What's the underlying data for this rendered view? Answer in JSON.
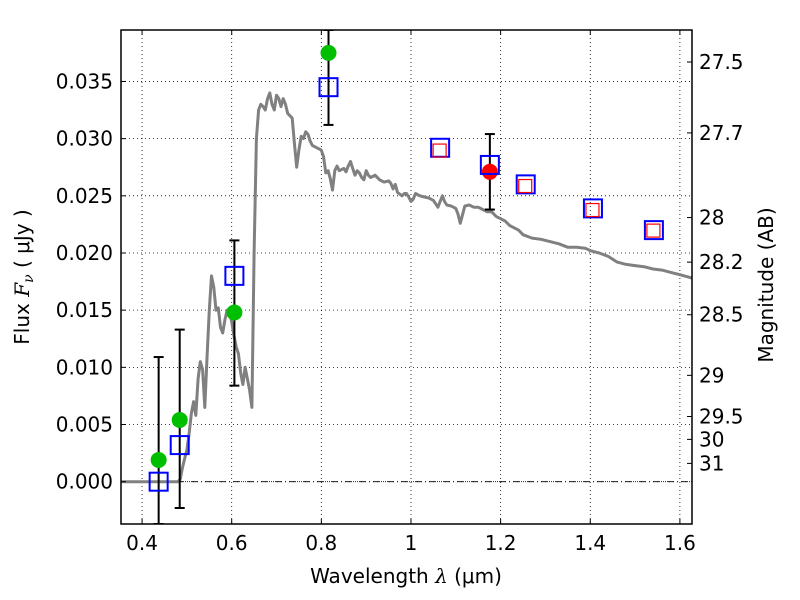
{
  "chart_data": {
    "type": "scatter",
    "title": "",
    "xlabel": "Wavelength  λ (μm)",
    "xlabel_parts": {
      "text": "Wavelength  ",
      "symbol": "λ",
      "unit": " (μm)"
    },
    "ylabel": "Flux  Fν  ( μJy )",
    "ylabel_parts": {
      "text": "Flux  ",
      "symbol": "F",
      "sub": "ν",
      "unit": "  ( μJy )"
    },
    "y2label": "Magnitude (AB)",
    "xlim": [
      0.353,
      1.627
    ],
    "ylim": [
      -0.0037,
      0.0395
    ],
    "grid": true,
    "x_ticks": [
      {
        "value": 0.4,
        "label": "0.4"
      },
      {
        "value": 0.6,
        "label": "0.6"
      },
      {
        "value": 0.8,
        "label": "0.8"
      },
      {
        "value": 1.0,
        "label": "1"
      },
      {
        "value": 1.2,
        "label": "1.2"
      },
      {
        "value": 1.4,
        "label": "1.4"
      },
      {
        "value": 1.6,
        "label": "1.6"
      }
    ],
    "y_ticks": [
      {
        "value": 0.0,
        "label": "0.000"
      },
      {
        "value": 0.005,
        "label": "0.005"
      },
      {
        "value": 0.01,
        "label": "0.010"
      },
      {
        "value": 0.015,
        "label": "0.015"
      },
      {
        "value": 0.02,
        "label": "0.020"
      },
      {
        "value": 0.025,
        "label": "0.025"
      },
      {
        "value": 0.03,
        "label": "0.030"
      },
      {
        "value": 0.035,
        "label": "0.035"
      }
    ],
    "y2_ticks": [
      {
        "value": 27.5,
        "label": "27.5",
        "flux": 0.0367
      },
      {
        "value": 27.7,
        "label": "27.7",
        "flux": 0.0305
      },
      {
        "value": 28.0,
        "label": "28",
        "flux": 0.0231
      },
      {
        "value": 28.2,
        "label": "28.2",
        "flux": 0.0192
      },
      {
        "value": 28.5,
        "label": "28.5",
        "flux": 0.0146
      },
      {
        "value": 29.0,
        "label": "29",
        "flux": 0.0093
      },
      {
        "value": 29.5,
        "label": "29.5",
        "flux": 0.0057
      },
      {
        "value": 30.0,
        "label": "30",
        "flux": 0.0037
      },
      {
        "value": 31.0,
        "label": "31",
        "flux": 0.0016
      }
    ],
    "zero_line": 0.0,
    "series": [
      {
        "name": "model-spectrum",
        "kind": "line",
        "color": "#808080",
        "points": [
          [
            0.353,
            0.0
          ],
          [
            0.4,
            0.0
          ],
          [
            0.44,
            0.0
          ],
          [
            0.48,
            0.0
          ],
          [
            0.485,
            0.0002
          ],
          [
            0.49,
            0.0012
          ],
          [
            0.495,
            0.002
          ],
          [
            0.5,
            0.0028
          ],
          [
            0.505,
            0.0042
          ],
          [
            0.51,
            0.006
          ],
          [
            0.515,
            0.007
          ],
          [
            0.52,
            0.0058
          ],
          [
            0.525,
            0.009
          ],
          [
            0.53,
            0.0105
          ],
          [
            0.535,
            0.0098
          ],
          [
            0.54,
            0.0065
          ],
          [
            0.545,
            0.011
          ],
          [
            0.55,
            0.015
          ],
          [
            0.555,
            0.018
          ],
          [
            0.56,
            0.017
          ],
          [
            0.565,
            0.015
          ],
          [
            0.57,
            0.0152
          ],
          [
            0.575,
            0.0135
          ],
          [
            0.58,
            0.013
          ],
          [
            0.585,
            0.0142
          ],
          [
            0.59,
            0.015
          ],
          [
            0.595,
            0.0148
          ],
          [
            0.6,
            0.014
          ],
          [
            0.605,
            0.0128
          ],
          [
            0.61,
            0.0118
          ],
          [
            0.615,
            0.0112
          ],
          [
            0.62,
            0.0095
          ],
          [
            0.625,
            0.0085
          ],
          [
            0.63,
            0.01
          ],
          [
            0.635,
            0.009
          ],
          [
            0.64,
            0.008
          ],
          [
            0.645,
            0.0065
          ],
          [
            0.65,
            0.02
          ],
          [
            0.655,
            0.03
          ],
          [
            0.66,
            0.0325
          ],
          [
            0.665,
            0.033
          ],
          [
            0.67,
            0.0328
          ],
          [
            0.675,
            0.0325
          ],
          [
            0.68,
            0.0335
          ],
          [
            0.685,
            0.034
          ],
          [
            0.69,
            0.033
          ],
          [
            0.695,
            0.0325
          ],
          [
            0.7,
            0.0338
          ],
          [
            0.705,
            0.0335
          ],
          [
            0.71,
            0.0328
          ],
          [
            0.715,
            0.0335
          ],
          [
            0.72,
            0.033
          ],
          [
            0.725,
            0.0322
          ],
          [
            0.73,
            0.032
          ],
          [
            0.735,
            0.0318
          ],
          [
            0.74,
            0.0295
          ],
          [
            0.745,
            0.0275
          ],
          [
            0.75,
            0.029
          ],
          [
            0.755,
            0.0302
          ],
          [
            0.76,
            0.03
          ],
          [
            0.765,
            0.0306
          ],
          [
            0.77,
            0.0304
          ],
          [
            0.775,
            0.0298
          ],
          [
            0.78,
            0.0294
          ],
          [
            0.79,
            0.0292
          ],
          [
            0.8,
            0.029
          ],
          [
            0.805,
            0.0284
          ],
          [
            0.81,
            0.027
          ],
          [
            0.815,
            0.0272
          ],
          [
            0.82,
            0.0265
          ],
          [
            0.825,
            0.0255
          ],
          [
            0.83,
            0.0272
          ],
          [
            0.835,
            0.0276
          ],
          [
            0.84,
            0.0272
          ],
          [
            0.85,
            0.0274
          ],
          [
            0.855,
            0.0271
          ],
          [
            0.86,
            0.0276
          ],
          [
            0.865,
            0.028
          ],
          [
            0.87,
            0.0274
          ],
          [
            0.875,
            0.0268
          ],
          [
            0.88,
            0.0272
          ],
          [
            0.885,
            0.027
          ],
          [
            0.89,
            0.0266
          ],
          [
            0.895,
            0.0264
          ],
          [
            0.9,
            0.0272
          ],
          [
            0.905,
            0.0268
          ],
          [
            0.91,
            0.0266
          ],
          [
            0.92,
            0.0268
          ],
          [
            0.93,
            0.0264
          ],
          [
            0.94,
            0.0262
          ],
          [
            0.95,
            0.0263
          ],
          [
            0.955,
            0.0261
          ],
          [
            0.96,
            0.0256
          ],
          [
            0.965,
            0.026
          ],
          [
            0.97,
            0.0253
          ],
          [
            0.98,
            0.025
          ],
          [
            0.985,
            0.0252
          ],
          [
            0.99,
            0.0252
          ],
          [
            0.995,
            0.0249
          ],
          [
            1.0,
            0.0245
          ],
          [
            1.005,
            0.0247
          ],
          [
            1.01,
            0.0252
          ],
          [
            1.02,
            0.025
          ],
          [
            1.03,
            0.0249
          ],
          [
            1.04,
            0.0248
          ],
          [
            1.05,
            0.0246
          ],
          [
            1.06,
            0.024
          ],
          [
            1.065,
            0.0245
          ],
          [
            1.07,
            0.025
          ],
          [
            1.075,
            0.0245
          ],
          [
            1.08,
            0.0242
          ],
          [
            1.09,
            0.0241
          ],
          [
            1.1,
            0.0239
          ],
          [
            1.105,
            0.0234
          ],
          [
            1.11,
            0.0226
          ],
          [
            1.12,
            0.0241
          ],
          [
            1.13,
            0.0242
          ],
          [
            1.14,
            0.024
          ],
          [
            1.15,
            0.024
          ],
          [
            1.16,
            0.0238
          ],
          [
            1.17,
            0.0236
          ],
          [
            1.18,
            0.0236
          ],
          [
            1.19,
            0.0232
          ],
          [
            1.2,
            0.023
          ],
          [
            1.21,
            0.0228
          ],
          [
            1.22,
            0.0224
          ],
          [
            1.23,
            0.0222
          ],
          [
            1.24,
            0.022
          ],
          [
            1.25,
            0.0216
          ],
          [
            1.27,
            0.0213
          ],
          [
            1.29,
            0.0212
          ],
          [
            1.31,
            0.021
          ],
          [
            1.33,
            0.0208
          ],
          [
            1.35,
            0.0205
          ],
          [
            1.37,
            0.0205
          ],
          [
            1.39,
            0.0204
          ],
          [
            1.4,
            0.0202
          ],
          [
            1.42,
            0.02
          ],
          [
            1.44,
            0.0197
          ],
          [
            1.46,
            0.0192
          ],
          [
            1.48,
            0.019
          ],
          [
            1.5,
            0.0189
          ],
          [
            1.52,
            0.0188
          ],
          [
            1.54,
            0.0186
          ],
          [
            1.56,
            0.0185
          ],
          [
            1.58,
            0.0183
          ],
          [
            1.6,
            0.0181
          ],
          [
            1.627,
            0.0178
          ]
        ]
      },
      {
        "name": "observed-green",
        "kind": "circle",
        "color": "#00bf00",
        "points": [
          {
            "x": 0.437,
            "y": 0.0019
          },
          {
            "x": 0.484,
            "y": 0.0054
          },
          {
            "x": 0.606,
            "y": 0.0148
          },
          {
            "x": 0.816,
            "y": 0.0375
          }
        ]
      },
      {
        "name": "observed-red",
        "kind": "circle",
        "color": "#ff0000",
        "points": [
          {
            "x": 1.176,
            "y": 0.0271
          }
        ]
      },
      {
        "name": "model-photometry-blue",
        "kind": "open-square",
        "color": "#0000ff",
        "points": [
          {
            "x": 0.437,
            "y": 0.0
          },
          {
            "x": 0.484,
            "y": 0.0032
          },
          {
            "x": 0.606,
            "y": 0.018
          },
          {
            "x": 0.816,
            "y": 0.0345
          },
          {
            "x": 1.065,
            "y": 0.0292
          },
          {
            "x": 1.176,
            "y": 0.0277
          },
          {
            "x": 1.256,
            "y": 0.026
          },
          {
            "x": 1.406,
            "y": 0.0239
          },
          {
            "x": 1.542,
            "y": 0.022
          }
        ]
      },
      {
        "name": "model-photometry-red",
        "kind": "open-square-small",
        "color": "#ff0000",
        "points": [
          {
            "x": 1.065,
            "y": 0.029
          },
          {
            "x": 1.256,
            "y": 0.0259
          },
          {
            "x": 1.406,
            "y": 0.0238
          },
          {
            "x": 1.542,
            "y": 0.022
          }
        ]
      }
    ],
    "error_bars": [
      {
        "x": 0.437,
        "low": -0.0037,
        "high": 0.0109
      },
      {
        "x": 0.484,
        "low": -0.0023,
        "high": 0.0133
      },
      {
        "x": 0.606,
        "low": 0.0084,
        "high": 0.0211
      },
      {
        "x": 0.816,
        "low": 0.0312,
        "high": 0.0395
      },
      {
        "x": 1.176,
        "low": 0.0238,
        "high": 0.0304
      }
    ]
  }
}
